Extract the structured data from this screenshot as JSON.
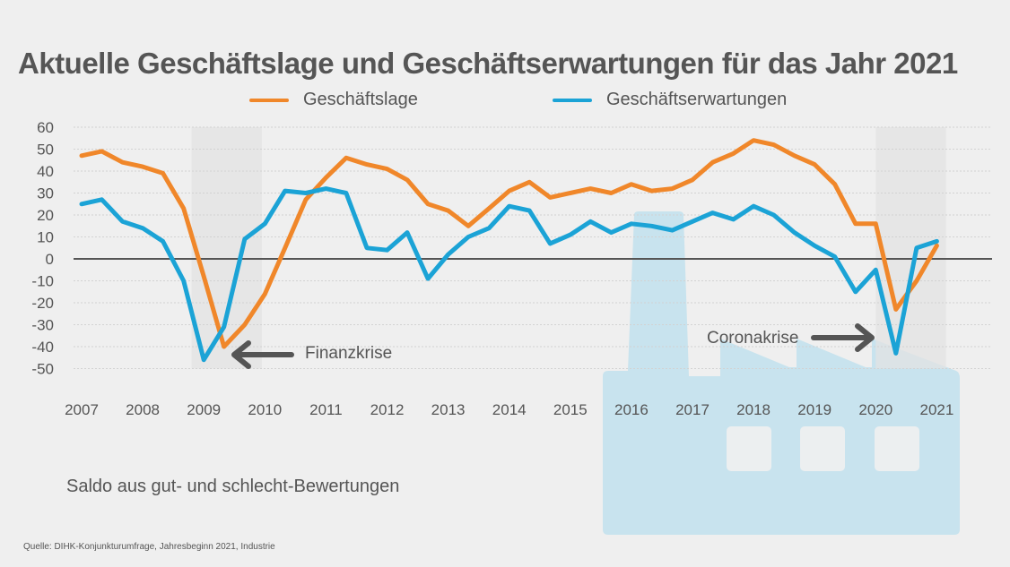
{
  "title": "Aktuelle Geschäftslage und Geschäftserwartungen für das Jahr 2021",
  "subtitle_note": "Saldo aus gut- und schlecht-Bewertungen",
  "source": "Quelle: DIHK-Konjunkturumfrage, Jahresbeginn 2021, Industrie",
  "colors": {
    "lage": "#f0872a",
    "erwartungen": "#1ba3d6",
    "background": "#efefef",
    "factory": "#c8e3ee",
    "crisis_band": "#e3e3e3",
    "arrow": "#555555"
  },
  "chart_data": {
    "type": "line",
    "title": "Aktuelle Geschäftslage und Geschäftserwartungen für das Jahr 2021",
    "xlabel": "",
    "ylabel": "Saldo aus gut- und schlecht-Bewertungen",
    "ylim": [
      -50,
      60
    ],
    "yticks": [
      60,
      50,
      40,
      30,
      20,
      10,
      0,
      -10,
      -20,
      -30,
      -40,
      -50
    ],
    "xlim": [
      2007,
      2021.5
    ],
    "xticks": [
      "2007",
      "2008",
      "2009",
      "2010",
      "2011",
      "2012",
      "2013",
      "2014",
      "2015",
      "2016",
      "2017",
      "2018",
      "2019",
      "2020",
      "2021"
    ],
    "grid": true,
    "legend_position": "top-center",
    "x": [
      2007.0,
      2007.33,
      2007.67,
      2008.0,
      2008.33,
      2008.67,
      2009.0,
      2009.33,
      2009.67,
      2010.0,
      2010.33,
      2010.67,
      2011.0,
      2011.33,
      2011.67,
      2012.0,
      2012.33,
      2012.67,
      2013.0,
      2013.33,
      2013.67,
      2014.0,
      2014.33,
      2014.67,
      2015.0,
      2015.33,
      2015.67,
      2016.0,
      2016.33,
      2016.67,
      2017.0,
      2017.33,
      2017.67,
      2018.0,
      2018.33,
      2018.67,
      2019.0,
      2019.33,
      2019.67,
      2020.0,
      2020.33,
      2020.67,
      2021.0
    ],
    "series": [
      {
        "name": "Geschäftslage",
        "color": "#f0872a",
        "values": [
          47,
          49,
          44,
          42,
          39,
          23,
          -8,
          -40,
          -30,
          -16,
          5,
          27,
          37,
          46,
          43,
          41,
          36,
          25,
          22,
          15,
          23,
          31,
          35,
          28,
          30,
          32,
          30,
          34,
          31,
          32,
          36,
          44,
          48,
          54,
          52,
          47,
          43,
          34,
          16,
          16,
          -23,
          -10,
          6
        ]
      },
      {
        "name": "Geschäftserwartungen",
        "color": "#1ba3d6",
        "values": [
          25,
          27,
          17,
          14,
          8,
          -10,
          -46,
          -31,
          9,
          16,
          31,
          30,
          32,
          30,
          5,
          4,
          12,
          -9,
          2,
          10,
          14,
          24,
          22,
          7,
          11,
          17,
          12,
          16,
          15,
          13,
          17,
          21,
          18,
          24,
          20,
          12,
          6,
          1,
          -15,
          -5,
          -43,
          5,
          8
        ]
      }
    ],
    "shaded_periods": [
      {
        "label": "Finanzkrise",
        "from": 2008.8,
        "to": 2009.95
      },
      {
        "label": "Coronakrise",
        "from": 2020.0,
        "to": 2021.15
      }
    ],
    "annotations": [
      {
        "text": "Finanzkrise",
        "arrow_direction": "left",
        "points_to_x": 2009.33,
        "points_to_y": -45
      },
      {
        "text": "Coronakrise",
        "arrow_direction": "right",
        "points_to_x": 2020.0,
        "points_to_y": -35
      }
    ]
  }
}
